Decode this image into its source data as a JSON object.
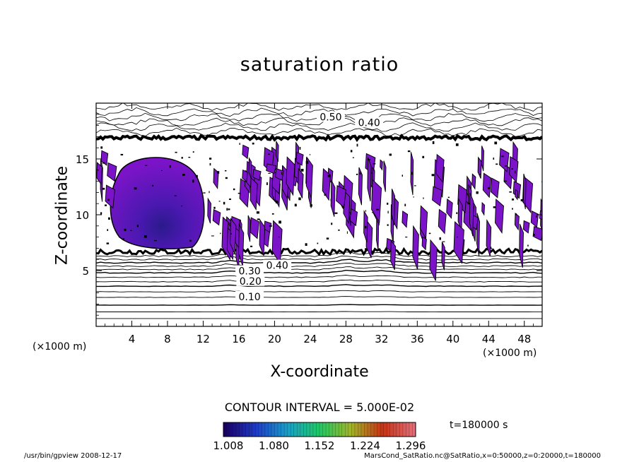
{
  "chart_data": {
    "type": "heatmap",
    "title": "saturation ratio",
    "xlabel": "X-coordinate",
    "ylabel": "Z-coordinate",
    "x_unit_left": "(×1000 m)",
    "x_unit_right": "(×1000 m)",
    "xlim": [
      0,
      50
    ],
    "ylim": [
      0,
      20
    ],
    "x_ticks": [
      4,
      8,
      12,
      16,
      20,
      24,
      28,
      32,
      36,
      40,
      44,
      48
    ],
    "y_ticks": [
      5,
      10,
      15
    ],
    "contour_interval_label": "CONTOUR INTERVAL = 5.000E-02",
    "contour_labels": [
      {
        "text": "0.50",
        "x": 26.3,
        "z": 18.7
      },
      {
        "text": "0.40",
        "x": 30.6,
        "z": 18.2
      },
      {
        "text": "0.30",
        "x": 17.2,
        "z": 4.9
      },
      {
        "text": "0.40",
        "x": 20.3,
        "z": 5.4
      },
      {
        "text": "0.20",
        "x": 17.3,
        "z": 4.0
      },
      {
        "text": "0.10",
        "x": 17.2,
        "z": 2.6
      }
    ],
    "stratified_levels_z": [
      0.7,
      1.3,
      1.9,
      2.6,
      3.1,
      3.6,
      4.0,
      4.4,
      4.8,
      5.1,
      5.4,
      5.7,
      6.0,
      6.3
    ],
    "upper_boundary_z": 16.9,
    "lower_boundary_z": 6.7,
    "colorbar": {
      "ticks": [
        "1.008",
        "1.080",
        "1.152",
        "1.224",
        "1.296"
      ],
      "colors": [
        "#1a0066",
        "#1e3cc8",
        "#19a0c8",
        "#1ec864",
        "#a0b428",
        "#c83214",
        "#e06e78"
      ]
    },
    "fill_color": "#7b14c8",
    "time_label": "t=180000 s"
  },
  "footer": {
    "left": "/usr/bin/gpview   2008-12-17",
    "right": "MarsCond_SatRatio.nc@SatRatio,x=0:50000,z=0:20000,t=180000"
  }
}
